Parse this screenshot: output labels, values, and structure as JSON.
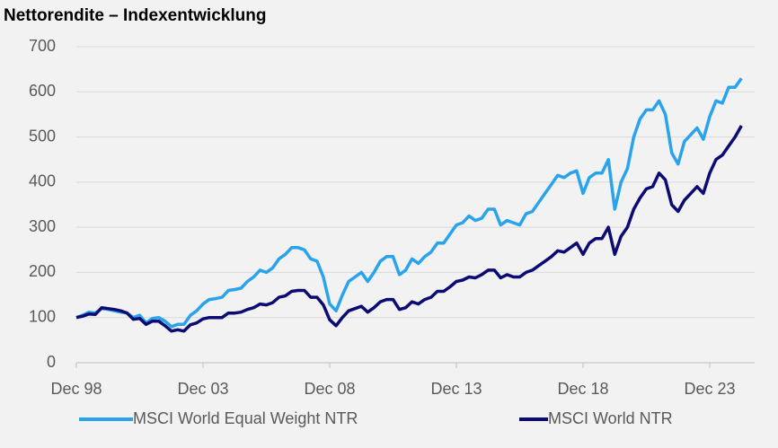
{
  "chart_data": {
    "type": "line",
    "title": "Nettorendite – Indexentwicklung",
    "categories": [
      "Dec 98",
      null,
      null,
      null,
      null,
      null,
      null,
      null,
      null,
      null,
      null,
      null,
      null,
      null,
      null,
      null,
      null,
      null,
      null,
      null,
      "Dec 03",
      null,
      null,
      null,
      null,
      null,
      null,
      null,
      null,
      null,
      null,
      null,
      null,
      null,
      null,
      null,
      null,
      null,
      null,
      null,
      "Dec 08",
      null,
      null,
      null,
      null,
      null,
      null,
      null,
      null,
      null,
      null,
      null,
      null,
      null,
      null,
      null,
      null,
      null,
      null,
      null,
      "Dec 13",
      null,
      null,
      null,
      null,
      null,
      null,
      null,
      null,
      null,
      null,
      null,
      null,
      null,
      null,
      null,
      null,
      null,
      null,
      null,
      "Dec 18",
      null,
      null,
      null,
      null,
      null,
      null,
      null,
      null,
      null,
      null,
      null,
      null,
      null,
      null,
      null,
      null,
      null,
      null,
      null,
      "Dec 23",
      null,
      null,
      null,
      null,
      null
    ],
    "series": [
      {
        "name": "MSCI World Equal Weight NTR",
        "color": "#29a3ec",
        "values": [
          100,
          105,
          112,
          110,
          120,
          118,
          115,
          112,
          110,
          100,
          105,
          88,
          98,
          100,
          92,
          80,
          85,
          85,
          105,
          115,
          130,
          140,
          142,
          145,
          160,
          162,
          165,
          180,
          190,
          205,
          200,
          210,
          230,
          240,
          255,
          255,
          250,
          230,
          225,
          190,
          130,
          115,
          150,
          180,
          190,
          200,
          180,
          200,
          225,
          235,
          235,
          195,
          205,
          230,
          220,
          235,
          245,
          265,
          265,
          285,
          305,
          310,
          325,
          315,
          320,
          340,
          340,
          305,
          315,
          310,
          305,
          330,
          335,
          355,
          375,
          395,
          415,
          410,
          420,
          425,
          375,
          410,
          420,
          420,
          450,
          340,
          400,
          430,
          500,
          540,
          560,
          560,
          580,
          550,
          465,
          440,
          490,
          505,
          520,
          495,
          545,
          580,
          575,
          610,
          610,
          630
        ]
      },
      {
        "name": "MSCI World NTR",
        "color": "#0b0b73",
        "values": [
          100,
          103,
          108,
          107,
          122,
          120,
          118,
          115,
          110,
          96,
          98,
          85,
          92,
          92,
          82,
          70,
          73,
          70,
          84,
          88,
          97,
          100,
          100,
          100,
          110,
          110,
          112,
          118,
          122,
          130,
          128,
          133,
          145,
          148,
          158,
          160,
          160,
          145,
          145,
          128,
          95,
          82,
          100,
          115,
          120,
          125,
          112,
          122,
          135,
          140,
          140,
          118,
          122,
          135,
          130,
          140,
          145,
          158,
          158,
          168,
          180,
          183,
          190,
          188,
          195,
          205,
          205,
          188,
          195,
          190,
          190,
          200,
          205,
          215,
          225,
          235,
          248,
          245,
          255,
          265,
          240,
          265,
          275,
          275,
          300,
          240,
          280,
          300,
          340,
          365,
          385,
          390,
          420,
          405,
          350,
          335,
          360,
          375,
          390,
          375,
          420,
          450,
          460,
          480,
          500,
          525
        ]
      }
    ],
    "ylim": [
      0,
      700
    ],
    "yticks": [
      0,
      100,
      200,
      300,
      400,
      500,
      600,
      700
    ],
    "grid": true
  }
}
